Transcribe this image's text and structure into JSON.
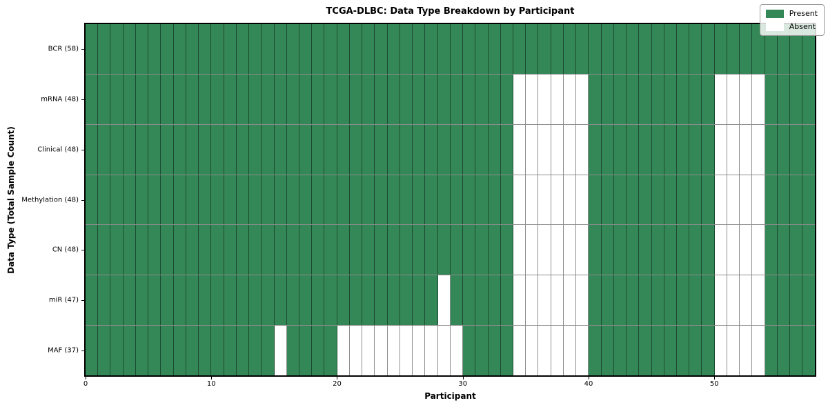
{
  "chart_data": {
    "type": "heatmap",
    "title": "TCGA-DLBC: Data Type Breakdown by Participant",
    "xlabel": "Participant",
    "ylabel": "Data Type (Total Sample Count)",
    "x_ticks": [
      0,
      10,
      20,
      30,
      40,
      50
    ],
    "x_range": [
      0,
      58
    ],
    "n_participants": 58,
    "grid": "cell borders on, dark thin lines",
    "legend_position": "upper right",
    "rows": [
      {
        "label": "BCR (58)",
        "present_count": 58,
        "absent_participants": []
      },
      {
        "label": "mRNA (48)",
        "present_count": 48,
        "absent_participants": [
          34,
          35,
          36,
          37,
          38,
          39,
          50,
          51,
          52,
          53
        ]
      },
      {
        "label": "Clinical (48)",
        "present_count": 48,
        "absent_participants": [
          34,
          35,
          36,
          37,
          38,
          39,
          50,
          51,
          52,
          53
        ]
      },
      {
        "label": "Methylation (48)",
        "present_count": 48,
        "absent_participants": [
          34,
          35,
          36,
          37,
          38,
          39,
          50,
          51,
          52,
          53
        ]
      },
      {
        "label": "CN (48)",
        "present_count": 48,
        "absent_participants": [
          34,
          35,
          36,
          37,
          38,
          39,
          50,
          51,
          52,
          53
        ]
      },
      {
        "label": "miR (47)",
        "present_count": 47,
        "absent_participants": [
          28,
          34,
          35,
          36,
          37,
          38,
          39,
          50,
          51,
          52,
          53
        ]
      },
      {
        "label": "MAF (37)",
        "present_count": 37,
        "absent_participants": [
          15,
          20,
          21,
          22,
          23,
          24,
          25,
          26,
          27,
          28,
          29,
          34,
          35,
          36,
          37,
          38,
          39,
          50,
          51,
          52,
          53
        ]
      }
    ],
    "legend": [
      {
        "label": "Present",
        "color": "#348857"
      },
      {
        "label": "Absent",
        "color": "#ffffff"
      }
    ],
    "colors": {
      "present": "#348857",
      "absent": "#ffffff",
      "grid_line": "rgba(0,0,0,0.45)",
      "spine": "#000000",
      "background": "#ffffff"
    }
  }
}
